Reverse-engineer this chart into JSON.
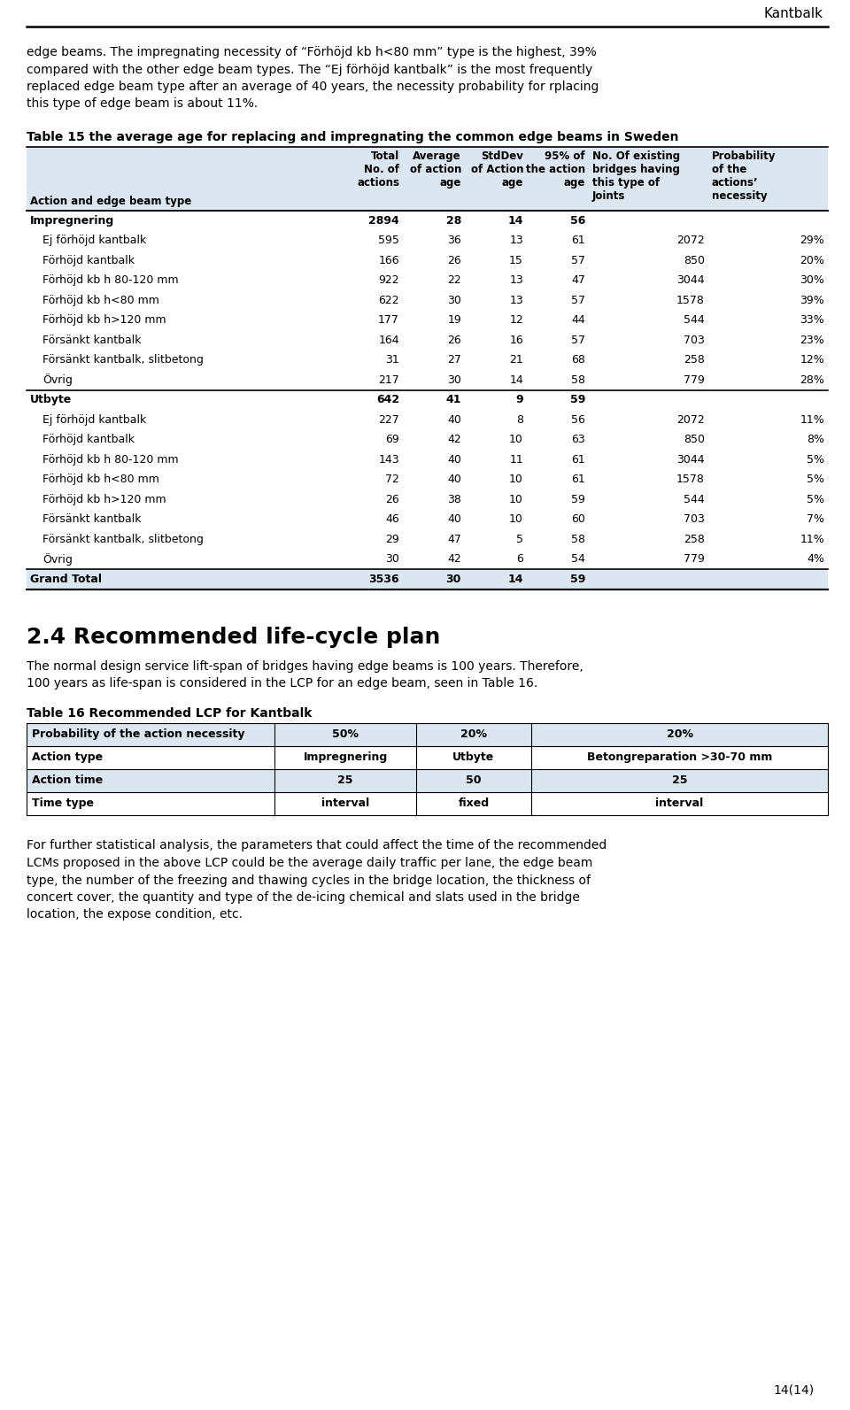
{
  "page_header": "Kantbalk",
  "intro_text_lines": [
    "edge beams. The impregnating necessity of “Förhöjd kb h<80 mm” type is the highest, 39%",
    "compared with the other edge beam types. The “Ej förhöjd kantbalk” is the most frequently",
    "replaced edge beam type after an average of 40 years, the necessity probability for rplacing",
    "this type of edge beam is about 11%."
  ],
  "table1_title": "Table 15 the average age for replacing and impregnating the common edge beams in Sweden",
  "table1_rows": [
    {
      "label": "Impregnering",
      "bold": true,
      "indent": false,
      "values": [
        "2894",
        "28",
        "14",
        "56",
        "",
        ""
      ],
      "separator_before": true,
      "separator_after": false
    },
    {
      "label": "Ej förhöjd kantbalk",
      "bold": false,
      "indent": true,
      "values": [
        "595",
        "36",
        "13",
        "61",
        "2072",
        "29%"
      ],
      "separator_before": false,
      "separator_after": false
    },
    {
      "label": "Förhöjd kantbalk",
      "bold": false,
      "indent": true,
      "values": [
        "166",
        "26",
        "15",
        "57",
        "850",
        "20%"
      ],
      "separator_before": false,
      "separator_after": false
    },
    {
      "label": "Förhöjd kb h 80-120 mm",
      "bold": false,
      "indent": true,
      "values": [
        "922",
        "22",
        "13",
        "47",
        "3044",
        "30%"
      ],
      "separator_before": false,
      "separator_after": false
    },
    {
      "label": "Förhöjd kb h<80 mm",
      "bold": false,
      "indent": true,
      "values": [
        "622",
        "30",
        "13",
        "57",
        "1578",
        "39%"
      ],
      "separator_before": false,
      "separator_after": false
    },
    {
      "label": "Förhöjd kb h>120 mm",
      "bold": false,
      "indent": true,
      "values": [
        "177",
        "19",
        "12",
        "44",
        "544",
        "33%"
      ],
      "separator_before": false,
      "separator_after": false
    },
    {
      "label": "Försänkt kantbalk",
      "bold": false,
      "indent": true,
      "values": [
        "164",
        "26",
        "16",
        "57",
        "703",
        "23%"
      ],
      "separator_before": false,
      "separator_after": false
    },
    {
      "label": "Försänkt kantbalk, slitbetong",
      "bold": false,
      "indent": true,
      "values": [
        "31",
        "27",
        "21",
        "68",
        "258",
        "12%"
      ],
      "separator_before": false,
      "separator_after": false
    },
    {
      "label": "Övrig",
      "bold": false,
      "indent": true,
      "values": [
        "217",
        "30",
        "14",
        "58",
        "779",
        "28%"
      ],
      "separator_before": false,
      "separator_after": false
    },
    {
      "label": "Utbyte",
      "bold": true,
      "indent": false,
      "values": [
        "642",
        "41",
        "9",
        "59",
        "",
        ""
      ],
      "separator_before": true,
      "separator_after": false
    },
    {
      "label": "Ej förhöjd kantbalk",
      "bold": false,
      "indent": true,
      "values": [
        "227",
        "40",
        "8",
        "56",
        "2072",
        "11%"
      ],
      "separator_before": false,
      "separator_after": false
    },
    {
      "label": "Förhöjd kantbalk",
      "bold": false,
      "indent": true,
      "values": [
        "69",
        "42",
        "10",
        "63",
        "850",
        "8%"
      ],
      "separator_before": false,
      "separator_after": false
    },
    {
      "label": "Förhöjd kb h 80-120 mm",
      "bold": false,
      "indent": true,
      "values": [
        "143",
        "40",
        "11",
        "61",
        "3044",
        "5%"
      ],
      "separator_before": false,
      "separator_after": false
    },
    {
      "label": "Förhöjd kb h<80 mm",
      "bold": false,
      "indent": true,
      "values": [
        "72",
        "40",
        "10",
        "61",
        "1578",
        "5%"
      ],
      "separator_before": false,
      "separator_after": false
    },
    {
      "label": "Förhöjd kb h>120 mm",
      "bold": false,
      "indent": true,
      "values": [
        "26",
        "38",
        "10",
        "59",
        "544",
        "5%"
      ],
      "separator_before": false,
      "separator_after": false
    },
    {
      "label": "Försänkt kantbalk",
      "bold": false,
      "indent": true,
      "values": [
        "46",
        "40",
        "10",
        "60",
        "703",
        "7%"
      ],
      "separator_before": false,
      "separator_after": false
    },
    {
      "label": "Försänkt kantbalk, slitbetong",
      "bold": false,
      "indent": true,
      "values": [
        "29",
        "47",
        "5",
        "58",
        "258",
        "11%"
      ],
      "separator_before": false,
      "separator_after": false
    },
    {
      "label": "Övrig",
      "bold": false,
      "indent": true,
      "values": [
        "30",
        "42",
        "6",
        "54",
        "779",
        "4%"
      ],
      "separator_before": false,
      "separator_after": false
    },
    {
      "label": "Grand Total",
      "bold": true,
      "indent": false,
      "values": [
        "3536",
        "30",
        "14",
        "59",
        "",
        ""
      ],
      "separator_before": true,
      "separator_after": true
    }
  ],
  "section_title": "2.4 Recommended life-cycle plan",
  "section_text1_lines": [
    "The normal design service lift-span of bridges having edge beams is 100 years. Therefore,",
    "100 years as life-span is considered in the LCP for an edge beam, seen in Table 16."
  ],
  "table2_title": "Table 16 Recommended LCP for Kantbalk",
  "table2_headers": [
    "Probability of the action necessity",
    "50%",
    "20%",
    "20%"
  ],
  "table2_rows": [
    [
      "Action type",
      "Impregnering",
      "Utbyte",
      "Betongreparation >30-70 mm"
    ],
    [
      "Action time",
      "25",
      "50",
      "25"
    ],
    [
      "Time type",
      "interval",
      "fixed",
      "interval"
    ]
  ],
  "section_text2_lines": [
    "For further statistical analysis, the parameters that could affect the time of the recommended",
    "LCMs proposed in the above LCP could be the average daily traffic per lane, the edge beam",
    "type, the number of the freezing and thawing cycles in the bridge location, the thickness of",
    "concert cover, the quantity and type of the de-icing chemical and slats used in the bridge",
    "location, the expose condition, etc."
  ],
  "footer": "14(14)",
  "bg_color": "#ffffff",
  "table1_bg": "#dce6f1",
  "grand_total_bg": "#dce6f1"
}
